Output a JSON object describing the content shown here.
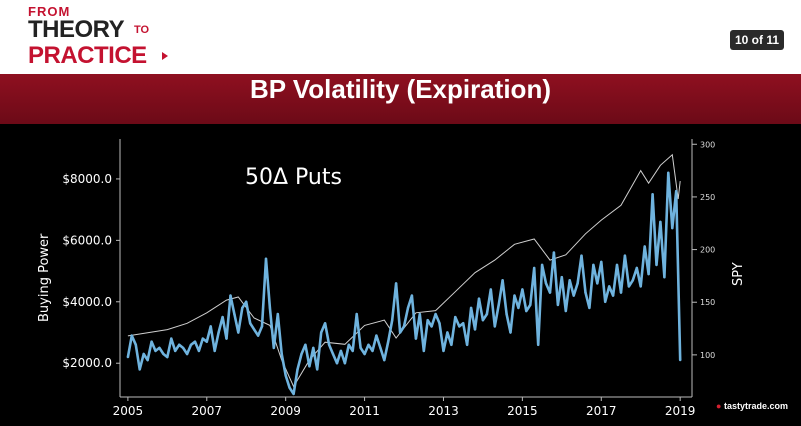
{
  "header": {
    "logo_from": "FROM",
    "logo_theory": "THEORY",
    "logo_to": "TO",
    "logo_practice": "PRACTICE",
    "page_indicator": "10 of 11"
  },
  "title": "BP Volatility (Expiration)",
  "brand": {
    "name": "tastytrade",
    "suffix": ".com"
  },
  "colors": {
    "accent": "#c41230",
    "title_bar": "#7d0d1b",
    "series_bp": "#6fb3de",
    "series_spy": "#cfcfcf",
    "background": "#000000"
  },
  "chart_data": {
    "type": "line",
    "annotation": "50Δ Puts",
    "ylabel": "Buying Power",
    "y2label": "SPY",
    "ylim": [
      900,
      9300
    ],
    "y2lim": [
      60,
      305
    ],
    "xlim": [
      2004.8,
      2019.3
    ],
    "x_ticks": [
      "2005",
      "2007",
      "2009",
      "2011",
      "2013",
      "2015",
      "2017",
      "2019"
    ],
    "y_ticks": [
      "$2000.0",
      "$4000.0",
      "$6000.0",
      "$8000.0"
    ],
    "y2_ticks": [
      "100",
      "150",
      "200",
      "250",
      "300"
    ],
    "grid": false,
    "series": [
      {
        "axis": "left",
        "x": [
          2005.0,
          2005.1,
          2005.2,
          2005.3,
          2005.4,
          2005.5,
          2005.6,
          2005.7,
          2005.8,
          2005.9,
          2006.0,
          2006.1,
          2006.2,
          2006.3,
          2006.4,
          2006.5,
          2006.6,
          2006.7,
          2006.8,
          2006.9,
          2007.0,
          2007.1,
          2007.2,
          2007.3,
          2007.4,
          2007.5,
          2007.6,
          2007.7,
          2007.8,
          2007.9,
          2008.0,
          2008.1,
          2008.2,
          2008.3,
          2008.4,
          2008.5,
          2008.6,
          2008.7,
          2008.8,
          2008.9,
          2009.0,
          2009.1,
          2009.2,
          2009.3,
          2009.4,
          2009.5,
          2009.6,
          2009.7,
          2009.8,
          2009.9,
          2010.0,
          2010.1,
          2010.2,
          2010.3,
          2010.4,
          2010.5,
          2010.6,
          2010.7,
          2010.8,
          2010.9,
          2011.0,
          2011.1,
          2011.2,
          2011.3,
          2011.4,
          2011.5,
          2011.6,
          2011.7,
          2011.8,
          2011.9,
          2012.0,
          2012.1,
          2012.2,
          2012.3,
          2012.4,
          2012.5,
          2012.6,
          2012.7,
          2012.8,
          2012.9,
          2013.0,
          2013.1,
          2013.2,
          2013.3,
          2013.4,
          2013.5,
          2013.6,
          2013.7,
          2013.8,
          2013.9,
          2014.0,
          2014.1,
          2014.2,
          2014.3,
          2014.4,
          2014.5,
          2014.6,
          2014.7,
          2014.8,
          2014.9,
          2015.0,
          2015.1,
          2015.2,
          2015.3,
          2015.4,
          2015.5,
          2015.6,
          2015.7,
          2015.8,
          2015.9,
          2016.0,
          2016.1,
          2016.2,
          2016.3,
          2016.4,
          2016.5,
          2016.6,
          2016.7,
          2016.8,
          2016.9,
          2017.0,
          2017.1,
          2017.2,
          2017.3,
          2017.4,
          2017.5,
          2017.6,
          2017.7,
          2017.8,
          2017.9,
          2018.0,
          2018.1,
          2018.2,
          2018.3,
          2018.4,
          2018.5,
          2018.6,
          2018.7,
          2018.8,
          2018.9,
          2019.0
        ],
        "y": [
          2200,
          2900,
          2600,
          1800,
          2300,
          2100,
          2700,
          2400,
          2500,
          2300,
          2200,
          2800,
          2400,
          2600,
          2500,
          2300,
          2600,
          2700,
          2400,
          2800,
          2700,
          3200,
          2400,
          3000,
          3500,
          2800,
          4200,
          3600,
          3000,
          3800,
          4000,
          3300,
          3100,
          2900,
          3200,
          5400,
          3800,
          2500,
          3600,
          2300,
          1600,
          1200,
          1000,
          1800,
          2300,
          2600,
          1900,
          2500,
          1800,
          3000,
          3300,
          2600,
          2300,
          2000,
          2400,
          2000,
          2600,
          2400,
          3600,
          2500,
          2300,
          2600,
          2400,
          2900,
          2500,
          2100,
          2700,
          3400,
          4600,
          3000,
          3200,
          3800,
          4200,
          2800,
          3600,
          2400,
          3400,
          3200,
          3600,
          3300,
          2400,
          3000,
          2600,
          3500,
          3200,
          3300,
          2600,
          3800,
          3100,
          4100,
          3400,
          3600,
          4400,
          3200,
          3900,
          4700,
          3600,
          3000,
          4200,
          3800,
          4400,
          3700,
          3900,
          5100,
          2600,
          5200,
          4600,
          4300,
          5600,
          3900,
          4800,
          3700,
          4700,
          4200,
          4600,
          5500,
          4300,
          3800,
          5200,
          4600,
          5300,
          4000,
          4500,
          4200,
          5200,
          4300,
          5500,
          4500,
          4700,
          5100,
          4500,
          5800,
          4900,
          7500,
          5200,
          6600,
          4800,
          8200,
          6400,
          7600,
          2100
        ]
      },
      {
        "axis": "right",
        "x": [
          2005.0,
          2005.5,
          2006.0,
          2006.5,
          2007.0,
          2007.5,
          2007.8,
          2008.2,
          2008.6,
          2008.9,
          2009.2,
          2009.6,
          2010.0,
          2010.5,
          2011.0,
          2011.5,
          2011.8,
          2012.3,
          2012.8,
          2013.3,
          2013.8,
          2014.3,
          2014.8,
          2015.3,
          2015.7,
          2016.1,
          2016.6,
          2017.0,
          2017.5,
          2018.0,
          2018.2,
          2018.5,
          2018.8,
          2018.95,
          2019.0
        ],
        "y": [
          118,
          121,
          124,
          130,
          140,
          152,
          155,
          135,
          128,
          95,
          70,
          95,
          112,
          110,
          128,
          133,
          116,
          140,
          142,
          160,
          178,
          190,
          205,
          210,
          190,
          195,
          215,
          228,
          242,
          275,
          263,
          280,
          290,
          248,
          265
        ]
      }
    ]
  }
}
